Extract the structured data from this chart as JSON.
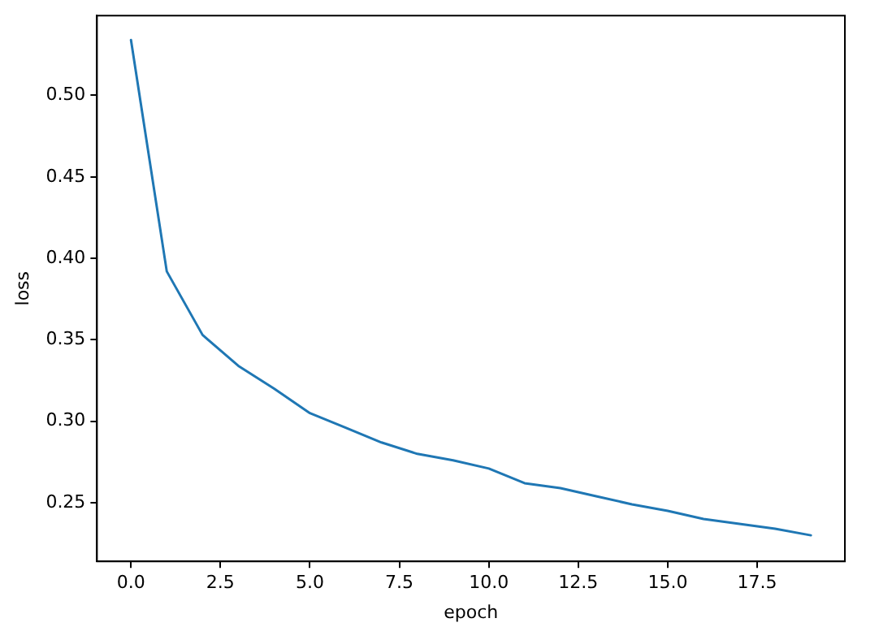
{
  "chart_data": {
    "type": "line",
    "xlabel": "epoch",
    "ylabel": "loss",
    "x": [
      0,
      1,
      2,
      3,
      4,
      5,
      6,
      7,
      8,
      9,
      10,
      11,
      12,
      13,
      14,
      15,
      16,
      17,
      18,
      19
    ],
    "series": [
      {
        "color": "#1f77b4",
        "values": [
          0.534,
          0.392,
          0.353,
          0.334,
          0.32,
          0.305,
          0.296,
          0.287,
          0.28,
          0.276,
          0.271,
          0.262,
          0.259,
          0.254,
          0.249,
          0.245,
          0.24,
          0.237,
          0.234,
          0.23
        ]
      }
    ],
    "xlim": [
      -0.95,
      19.95
    ],
    "xticks": [
      {
        "value": 0,
        "label": "0.0"
      },
      {
        "value": 2.5,
        "label": "2.5"
      },
      {
        "value": 5,
        "label": "5.0"
      },
      {
        "value": 7.5,
        "label": "7.5"
      },
      {
        "value": 10,
        "label": "10.0"
      },
      {
        "value": 12.5,
        "label": "12.5"
      },
      {
        "value": 15,
        "label": "15.0"
      },
      {
        "value": 17.5,
        "label": "17.5"
      }
    ],
    "ylim": [
      0.214,
      0.549
    ],
    "yticks": [
      {
        "value": 0.25,
        "label": "0.25"
      },
      {
        "value": 0.3,
        "label": "0.30"
      },
      {
        "value": 0.35,
        "label": "0.35"
      },
      {
        "value": 0.4,
        "label": "0.40"
      },
      {
        "value": 0.45,
        "label": "0.45"
      },
      {
        "value": 0.5,
        "label": "0.50"
      }
    ],
    "grid": false,
    "legend": false,
    "marker": "none",
    "line_style": "solid"
  }
}
